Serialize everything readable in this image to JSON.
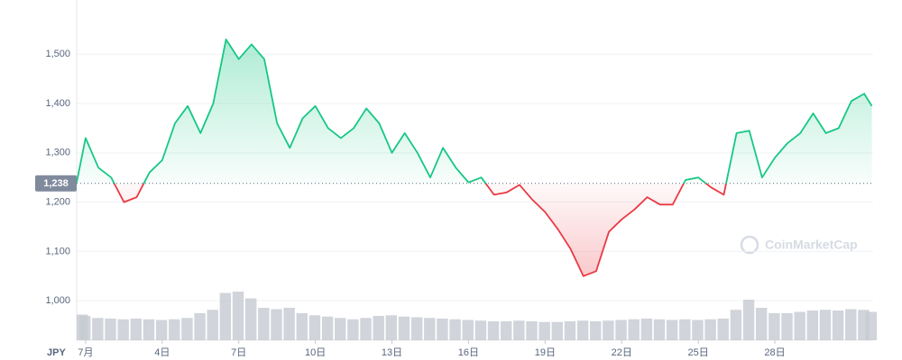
{
  "chart_data": {
    "type": "line",
    "currency": "JPY",
    "watermark": "CoinMarketCap",
    "x": [
      0.65,
      1,
      1.5,
      2,
      2.5,
      3,
      3.5,
      4,
      4.5,
      5,
      5.5,
      6,
      6.5,
      7,
      7.5,
      8,
      8.5,
      9,
      9.5,
      10,
      10.5,
      11,
      11.5,
      12,
      12.5,
      13,
      13.5,
      14,
      14.5,
      15,
      15.5,
      16,
      16.5,
      17,
      17.5,
      18,
      18.5,
      19,
      19.5,
      20,
      20.5,
      21,
      21.5,
      22,
      22.5,
      23,
      23.5,
      24,
      24.5,
      25,
      25.5,
      26,
      26.5,
      27,
      27.5,
      28,
      28.5,
      29,
      29.5,
      30,
      30.5,
      31,
      31.5,
      31.8
    ],
    "series": [
      {
        "name": "Price",
        "color_up": "#16c784",
        "color_down": "#ea3943",
        "values": [
          1240,
          1330,
          1270,
          1250,
          1200,
          1210,
          1260,
          1285,
          1360,
          1395,
          1340,
          1400,
          1530,
          1490,
          1520,
          1490,
          1360,
          1310,
          1370,
          1395,
          1350,
          1330,
          1350,
          1390,
          1360,
          1300,
          1340,
          1300,
          1250,
          1310,
          1270,
          1240,
          1250,
          1215,
          1220,
          1235,
          1205,
          1180,
          1145,
          1105,
          1050,
          1060,
          1140,
          1165,
          1185,
          1210,
          1195,
          1195,
          1245,
          1250,
          1230,
          1215,
          1340,
          1345,
          1250,
          1290,
          1320,
          1340,
          1380,
          1340,
          1350,
          1405,
          1420,
          1395
        ]
      },
      {
        "name": "Volume",
        "color": "#c5c9d1",
        "values": [
          38,
          36,
          33,
          32,
          31,
          32,
          31,
          30,
          31,
          33,
          40,
          45,
          70,
          72,
          62,
          48,
          46,
          48,
          40,
          37,
          35,
          33,
          31,
          33,
          36,
          37,
          35,
          34,
          33,
          32,
          31,
          30,
          29,
          28,
          28,
          29,
          28,
          27,
          27,
          28,
          29,
          28,
          29,
          30,
          31,
          32,
          31,
          30,
          31,
          30,
          31,
          32,
          45,
          60,
          48,
          40,
          40,
          42,
          44,
          45,
          44,
          46,
          45,
          42
        ]
      }
    ],
    "baseline": {
      "value": 1238,
      "label": "1,238"
    },
    "xlim": [
      0.65,
      31.85
    ],
    "xticks": [
      {
        "value": 1,
        "label": "7月"
      },
      {
        "value": 4,
        "label": "4日"
      },
      {
        "value": 7,
        "label": "7日"
      },
      {
        "value": 10,
        "label": "10日"
      },
      {
        "value": 13,
        "label": "13日"
      },
      {
        "value": 16,
        "label": "16日"
      },
      {
        "value": 19,
        "label": "19日"
      },
      {
        "value": 22,
        "label": "22日"
      },
      {
        "value": 25,
        "label": "25日"
      },
      {
        "value": 28,
        "label": "28日"
      }
    ],
    "ylim": [
      920,
      1610
    ],
    "yticks": [
      {
        "value": 1000,
        "label": "1,000"
      },
      {
        "value": 1100,
        "label": "1,100"
      },
      {
        "value": 1200,
        "label": "1,200"
      },
      {
        "value": 1300,
        "label": "1,300"
      },
      {
        "value": 1400,
        "label": "1,400"
      },
      {
        "value": 1500,
        "label": "1,500"
      }
    ],
    "volume_lim": [
      0,
      100
    ],
    "grid": true
  }
}
